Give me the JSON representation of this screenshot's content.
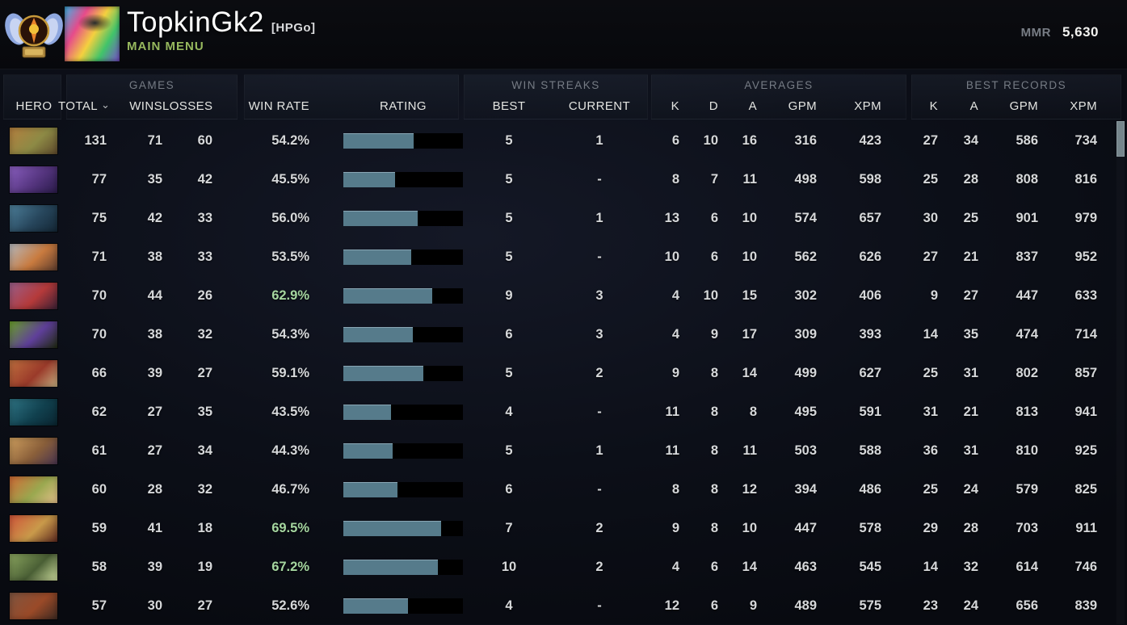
{
  "topbar": {
    "player_name": "TopkinGk2",
    "clan_tag": "[HPGo]",
    "menu_label": "MAIN MENU",
    "mmr_label": "MMR",
    "mmr_value": "5,630"
  },
  "icons": {
    "rank_medal": "divine-rank-medal",
    "sort_indicator": "⌄"
  },
  "colors": {
    "background": "#0c0f18",
    "bar_fill": "#567b8b",
    "win_rate_green": "#a5d6a0",
    "menu_green": "#97b95e"
  },
  "table": {
    "groups": {
      "games": "GAMES",
      "win_streaks": "WIN STREAKS",
      "averages": "AVERAGES",
      "best_records": "BEST RECORDS"
    },
    "columns": {
      "hero": "HERO",
      "total": "TOTAL",
      "wins": "WINS",
      "losses": "LOSSES",
      "win_rate": "WIN RATE",
      "rating": "RATING",
      "best": "BEST",
      "current": "CURRENT",
      "k": "K",
      "d": "D",
      "a": "A",
      "gpm": "GPM",
      "xpm": "XPM",
      "k2": "K",
      "a2": "A",
      "gpm2": "GPM",
      "xpm2": "XPM"
    }
  },
  "rows": [
    {
      "total": 131,
      "wins": 71,
      "losses": 60,
      "win_rate": "54.2%",
      "green": false,
      "rating_pct": 59,
      "best": 5,
      "current": "1",
      "k": 6,
      "d": 10,
      "a": 16,
      "gpm": 316,
      "xpm": 423,
      "rk": 27,
      "ra": 34,
      "rgpm": 586,
      "rxpm": 734,
      "portrait": [
        "#b5803f",
        "#8d8a45",
        "#5f4a2c"
      ]
    },
    {
      "total": 77,
      "wins": 35,
      "losses": 42,
      "win_rate": "45.5%",
      "green": false,
      "rating_pct": 43,
      "best": 5,
      "current": "-",
      "k": 8,
      "d": 7,
      "a": 11,
      "gpm": 498,
      "xpm": 598,
      "rk": 25,
      "ra": 28,
      "rgpm": 808,
      "rxpm": 816,
      "portrait": [
        "#8a5fc0",
        "#55357f",
        "#2a1b4a"
      ]
    },
    {
      "total": 75,
      "wins": 42,
      "losses": 33,
      "win_rate": "56.0%",
      "green": false,
      "rating_pct": 62,
      "best": 5,
      "current": "1",
      "k": 13,
      "d": 6,
      "a": 10,
      "gpm": 574,
      "xpm": 657,
      "rk": 30,
      "ra": 25,
      "rgpm": 901,
      "rxpm": 979,
      "portrait": [
        "#4d7f9a",
        "#27465c",
        "#142736"
      ]
    },
    {
      "total": 71,
      "wins": 38,
      "losses": 33,
      "win_rate": "53.5%",
      "green": false,
      "rating_pct": 57,
      "best": 5,
      "current": "-",
      "k": 10,
      "d": 6,
      "a": 10,
      "gpm": 562,
      "xpm": 626,
      "rk": 27,
      "ra": 21,
      "rgpm": 837,
      "rxpm": 952,
      "portrait": [
        "#b5b9bf",
        "#c97b3f",
        "#5f3d2e"
      ]
    },
    {
      "total": 70,
      "wins": 44,
      "losses": 26,
      "win_rate": "62.9%",
      "green": true,
      "rating_pct": 74,
      "best": 9,
      "current": "3",
      "k": 4,
      "d": 10,
      "a": 15,
      "gpm": 302,
      "xpm": 406,
      "rk": 9,
      "ra": 27,
      "rgpm": 447,
      "rxpm": 633,
      "portrait": [
        "#9a5f8a",
        "#b53a3a",
        "#3a2035"
      ]
    },
    {
      "total": 70,
      "wins": 38,
      "losses": 32,
      "win_rate": "54.3%",
      "green": false,
      "rating_pct": 58,
      "best": 6,
      "current": "3",
      "k": 4,
      "d": 9,
      "a": 17,
      "gpm": 309,
      "xpm": 393,
      "rk": 14,
      "ra": 35,
      "rgpm": 474,
      "rxpm": 714,
      "portrait": [
        "#6aa02a",
        "#5f3f9a",
        "#1f2a10"
      ]
    },
    {
      "total": 66,
      "wins": 39,
      "losses": 27,
      "win_rate": "59.1%",
      "green": false,
      "rating_pct": 67,
      "best": 5,
      "current": "2",
      "k": 9,
      "d": 8,
      "a": 14,
      "gpm": 499,
      "xpm": 627,
      "rk": 25,
      "ra": 31,
      "rgpm": 802,
      "rxpm": 857,
      "portrait": [
        "#c0703f",
        "#9a3a2a",
        "#c5ad7f"
      ]
    },
    {
      "total": 62,
      "wins": 27,
      "losses": 35,
      "win_rate": "43.5%",
      "green": false,
      "rating_pct": 40,
      "best": 4,
      "current": "-",
      "k": 11,
      "d": 8,
      "a": 8,
      "gpm": 495,
      "xpm": 591,
      "rk": 31,
      "ra": 21,
      "rgpm": 813,
      "rxpm": 941,
      "portrait": [
        "#2f7585",
        "#11414f",
        "#0a2530"
      ]
    },
    {
      "total": 61,
      "wins": 27,
      "losses": 34,
      "win_rate": "44.3%",
      "green": false,
      "rating_pct": 41,
      "best": 5,
      "current": "1",
      "k": 11,
      "d": 8,
      "a": 11,
      "gpm": 503,
      "xpm": 588,
      "rk": 36,
      "ra": 31,
      "rgpm": 810,
      "rxpm": 925,
      "portrait": [
        "#cfa05f",
        "#8a5f3a",
        "#4a3550"
      ]
    },
    {
      "total": 60,
      "wins": 28,
      "losses": 32,
      "win_rate": "46.7%",
      "green": false,
      "rating_pct": 45,
      "best": 6,
      "current": "-",
      "k": 8,
      "d": 8,
      "a": 12,
      "gpm": 394,
      "xpm": 486,
      "rk": 25,
      "ra": 24,
      "rgpm": 579,
      "rxpm": 825,
      "portrait": [
        "#d06a35",
        "#9aa84f",
        "#e5c08a"
      ]
    },
    {
      "total": 59,
      "wins": 41,
      "losses": 18,
      "win_rate": "69.5%",
      "green": true,
      "rating_pct": 82,
      "best": 7,
      "current": "2",
      "k": 9,
      "d": 8,
      "a": 10,
      "gpm": 447,
      "xpm": 578,
      "rk": 29,
      "ra": 28,
      "rgpm": 703,
      "rxpm": 911,
      "portrait": [
        "#d0553a",
        "#c99a4a",
        "#5f2a20"
      ]
    },
    {
      "total": 58,
      "wins": 39,
      "losses": 19,
      "win_rate": "67.2%",
      "green": true,
      "rating_pct": 79,
      "best": 10,
      "current": "2",
      "k": 4,
      "d": 6,
      "a": 14,
      "gpm": 463,
      "xpm": 545,
      "rk": 14,
      "ra": 32,
      "rgpm": 614,
      "rxpm": 746,
      "portrait": [
        "#8aa55f",
        "#4a5f35",
        "#cfdf9f"
      ]
    },
    {
      "total": 57,
      "wins": 30,
      "losses": 27,
      "win_rate": "52.6%",
      "green": false,
      "rating_pct": 54,
      "best": 4,
      "current": "-",
      "k": 12,
      "d": 6,
      "a": 9,
      "gpm": 489,
      "xpm": 575,
      "rk": 23,
      "ra": 24,
      "rgpm": 656,
      "rxpm": 839,
      "portrait": [
        "#7f5540",
        "#9a4a28",
        "#3f2a22"
      ]
    }
  ]
}
